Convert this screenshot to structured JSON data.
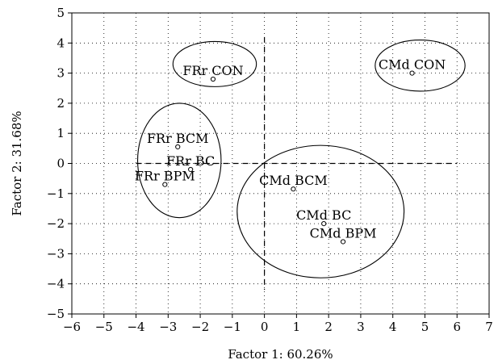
{
  "chart_data": {
    "type": "scatter",
    "xlabel": "Factor 1: 60.26%",
    "ylabel": "Factor 2: 31.68%",
    "xlim": [
      -6,
      7
    ],
    "ylim": [
      -5,
      5
    ],
    "xticks": [
      -6,
      -5,
      -4,
      -3,
      -2,
      -1,
      0,
      1,
      2,
      3,
      4,
      5,
      6,
      7
    ],
    "yticks": [
      -5,
      -4,
      -3,
      -2,
      -1,
      0,
      1,
      2,
      3,
      4,
      5
    ],
    "grid": "dotted",
    "points": [
      {
        "label": "FRr CON",
        "x": -1.6,
        "y": 2.8
      },
      {
        "label": "CMd CON",
        "x": 4.6,
        "y": 3.0
      },
      {
        "label": "FRr BCM",
        "x": -2.7,
        "y": 0.55
      },
      {
        "label": "FRr BC",
        "x": -2.3,
        "y": -0.2
      },
      {
        "label": "FRr BPM",
        "x": -3.1,
        "y": -0.7
      },
      {
        "label": "CMd BCM",
        "x": 0.9,
        "y": -0.85
      },
      {
        "label": "CMd BC",
        "x": 1.85,
        "y": -2.0
      },
      {
        "label": "CMd BPM",
        "x": 2.45,
        "y": -2.6
      }
    ],
    "groups": [
      {
        "members": [
          "FRr CON"
        ],
        "center": [
          -1.55,
          3.3
        ],
        "radii": [
          1.3,
          0.75
        ]
      },
      {
        "members": [
          "CMd CON"
        ],
        "center": [
          4.85,
          3.25
        ],
        "radii": [
          1.4,
          0.85
        ]
      },
      {
        "members": [
          "FRr BCM",
          "FRr BC",
          "FRr BPM"
        ],
        "center": [
          -2.65,
          0.1
        ],
        "radii": [
          1.3,
          1.9
        ]
      },
      {
        "members": [
          "CMd BCM",
          "CMd BC",
          "CMd BPM"
        ],
        "center": [
          1.75,
          -1.6
        ],
        "radii": [
          2.6,
          2.2
        ]
      }
    ],
    "reference_lines": {
      "x": 0,
      "y": 0,
      "style": "dashed"
    }
  }
}
